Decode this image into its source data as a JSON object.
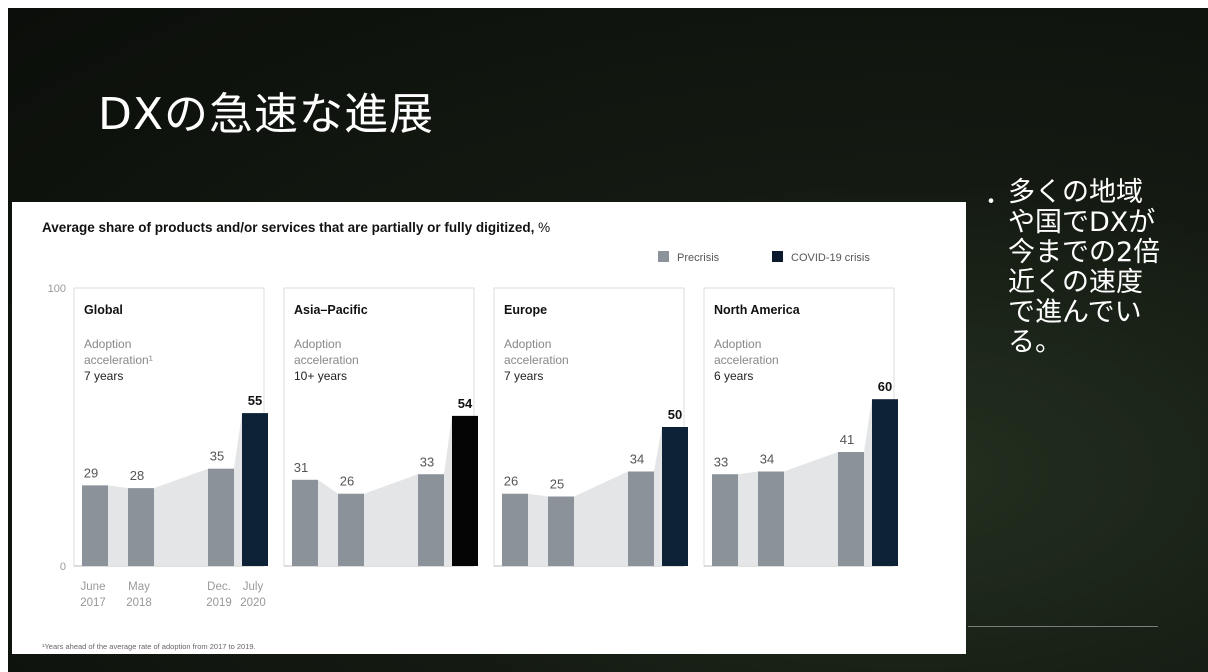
{
  "slide": {
    "title": "DXの急速な進展",
    "bullet": "多くの地域\nや国でDXが\n今までの2倍\n近くの速度\nで進んでい\nる。",
    "bullet_marker": "・"
  },
  "chart_data": {
    "type": "bar",
    "title": "Average share of products and/or services that are partially or fully digitized,",
    "title_unit": "%",
    "ylim": [
      0,
      100
    ],
    "y_ticks": [
      {
        "value": 0,
        "label": "0"
      },
      {
        "value": 100,
        "label": "100"
      }
    ],
    "categories": [
      "June 2017",
      "May 2018",
      "Dec. 2019",
      "July 2020"
    ],
    "category_labels": [
      [
        "June",
        "2017"
      ],
      [
        "May",
        "2018"
      ],
      [
        "Dec.",
        "2019"
      ],
      [
        "July",
        "2020"
      ]
    ],
    "legend": [
      {
        "label": "Precrisis",
        "color": "#8c929a"
      },
      {
        "label": "COVID-19 crisis",
        "color": "#0a1a2c"
      }
    ],
    "panels": [
      {
        "region": "Global",
        "accel_label": "Adoption acceleration¹",
        "accel_value": "7 years",
        "values": [
          29,
          28,
          35,
          55
        ],
        "crisis_color": "#0d2237"
      },
      {
        "region": "Asia–Pacific",
        "accel_label": "Adoption acceleration",
        "accel_value": "10+ years",
        "values": [
          31,
          26,
          33,
          54
        ],
        "crisis_color": "#050505"
      },
      {
        "region": "Europe",
        "accel_label": "Adoption acceleration",
        "accel_value": "7 years",
        "values": [
          26,
          25,
          34,
          50
        ],
        "crisis_color": "#0d2237"
      },
      {
        "region": "North America",
        "accel_label": "Adoption acceleration",
        "accel_value": "6 years",
        "values": [
          33,
          34,
          41,
          60
        ],
        "crisis_color": "#0d2237"
      }
    ],
    "footnote": "¹Years ahead of the average rate of adoption from 2017 to 2019.",
    "colors": {
      "precrisis": "#8c929a",
      "area": "#e4e5e7"
    }
  }
}
